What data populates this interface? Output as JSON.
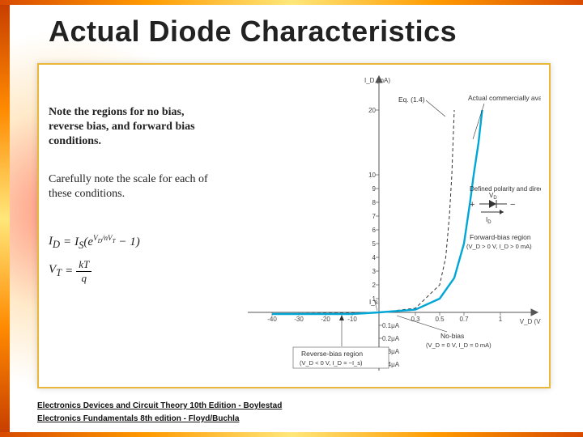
{
  "title": "Actual Diode Characteristics",
  "notes": {
    "note1": "Note the regions for no bias, reverse bias, and forward bias conditions.",
    "note2": "Carefully note the scale for each of these conditions."
  },
  "equations": {
    "eq1_lhs": "I",
    "eq1_lhs_sub": "D",
    "eq1_eq": " = ",
    "eq1_rhs_a": "I",
    "eq1_rhs_a_sub": "S",
    "eq1_rhs_b": "(e",
    "eq1_exp_num": "V",
    "eq1_exp_num_sub": "D",
    "eq1_exp_slash": "/nV",
    "eq1_exp_den_sub": "T",
    "eq1_tail": " − 1)",
    "eq2_lhs": "V",
    "eq2_lhs_sub": "T",
    "eq2_eq": " = ",
    "eq2_num": "kT",
    "eq2_den": "q"
  },
  "chart": {
    "type": "line",
    "y_axis": {
      "label": "I_D (mA)",
      "pos_ticks": [
        1,
        2,
        3,
        4,
        5,
        6,
        7,
        8,
        9,
        10,
        20
      ],
      "label_fontsize": 9
    },
    "y_axis_neg": {
      "label_suffix": "μA",
      "ticks": [
        -0.1,
        -0.2,
        -0.3,
        -0.4
      ]
    },
    "x_axis_pos": {
      "label": "V_D (V)",
      "ticks": [
        0.3,
        0.5,
        0.7,
        1
      ],
      "label_fontsize": 9
    },
    "x_axis_neg": {
      "ticks": [
        -10,
        -20,
        -30,
        -40
      ]
    },
    "colors": {
      "actual_curve": "#00a7d6",
      "ideal_curve": "#333333",
      "axes": "#555555",
      "grid": "#dddddd",
      "background": "#ffffff",
      "content_border": "#e9b739",
      "slide_accent_gradient": [
        "#c53c00",
        "#ff8a00",
        "#ffe77a"
      ]
    },
    "line_width_actual": 2.4,
    "line_width_ideal": 1.0,
    "ideal_dash": "4 3",
    "annotations": {
      "eq_ref": "Eq. (1.4)",
      "actual_label": "Actual commercially available unit",
      "polarity_label": "Defined polarity and direction for graph",
      "fwd_label": "Forward-bias region",
      "fwd_sub": "(V_D > 0 V,  I_D > 0 mA)",
      "nobias_label": "No-bias",
      "nobias_sub": "(V_D = 0 V, I_D = 0 mA)",
      "rev_label": "Reverse-bias region",
      "rev_sub": "(V_D < 0 V, I_D = −I_s)",
      "Is_label": "I_s"
    },
    "series": {
      "actual": [
        [
          -40,
          -0.01
        ],
        [
          -30,
          -0.01
        ],
        [
          -20,
          -0.01
        ],
        [
          -10,
          -0.01
        ],
        [
          0,
          0
        ],
        [
          0.3,
          0.2
        ],
        [
          0.5,
          1
        ],
        [
          0.62,
          2.5
        ],
        [
          0.7,
          5
        ],
        [
          0.75,
          8
        ],
        [
          0.78,
          10
        ],
        [
          0.82,
          15
        ],
        [
          0.85,
          20
        ]
      ],
      "ideal": [
        [
          -40,
          0
        ],
        [
          0,
          0
        ],
        [
          0.3,
          0.3
        ],
        [
          0.5,
          2
        ],
        [
          0.55,
          4
        ],
        [
          0.58,
          7
        ],
        [
          0.6,
          10
        ],
        [
          0.62,
          20
        ]
      ]
    }
  },
  "references": {
    "ref1": "Electronics Devices and Circuit Theory 10th Edition - Boylestad",
    "ref2": "Electronics Fundamentals 8th edition - Floyd/Buchla"
  }
}
